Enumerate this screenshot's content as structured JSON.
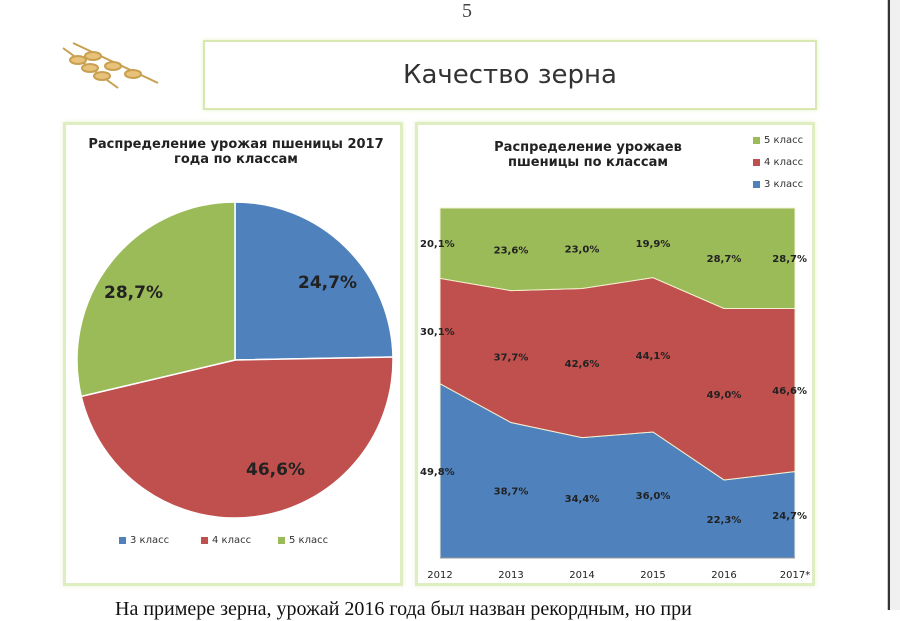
{
  "page_number": "5",
  "header_title": "Качество зерна",
  "colors": {
    "class3": "#4f81bd",
    "class4": "#c0504d",
    "class5": "#9bbb59"
  },
  "bottom_text": "На примере зерна, урожай 2016 года был назван рекордным, но при",
  "chart_data": [
    {
      "type": "pie",
      "title": "Распределение урожая пшеницы 2017 года по классам",
      "categories": [
        "3 класс",
        "4 класс",
        "5 класс"
      ],
      "values": [
        24.7,
        46.6,
        28.7
      ],
      "labels": [
        "24,7%",
        "46,6%",
        "28,7%"
      ],
      "legend_labels": [
        "3 класс",
        "4 класс",
        "5 класс"
      ],
      "legend": "bottom"
    },
    {
      "type": "area",
      "stacked": true,
      "title": "Распределение урожаев пшеницы по классам",
      "categories": [
        "2012",
        "2013",
        "2014",
        "2015",
        "2016",
        "2017*"
      ],
      "ylim": [
        0,
        100
      ],
      "legend": "top-right",
      "legend_labels": [
        "5 класс",
        "4 класс",
        "3 класс"
      ],
      "series": [
        {
          "name": "3 класс",
          "values": [
            49.8,
            38.7,
            34.4,
            36.0,
            22.3,
            24.7
          ],
          "labels": [
            "49,8%",
            "38,7%",
            "34,4%",
            "36,0%",
            "22,3%",
            "24,7%"
          ]
        },
        {
          "name": "4 класс",
          "values": [
            30.1,
            37.7,
            42.6,
            44.1,
            49.0,
            46.6
          ],
          "labels": [
            "30,1%",
            "37,7%",
            "42,6%",
            "44,1%",
            "49,0%",
            "46,6%"
          ]
        },
        {
          "name": "5 класс",
          "values": [
            20.1,
            23.6,
            23.0,
            19.9,
            28.7,
            28.7
          ],
          "labels": [
            "20,1%",
            "23,6%",
            "23,0%",
            "19,9%",
            "28,7%",
            "28,7%"
          ]
        }
      ]
    }
  ]
}
